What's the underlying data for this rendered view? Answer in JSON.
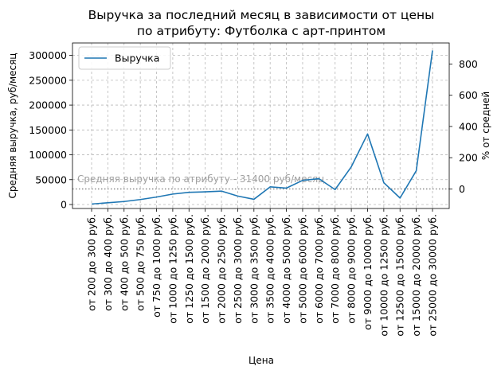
{
  "chart_data": {
    "type": "line",
    "title_line1": "Выручка за последний месяц в зависимости от цены",
    "title_line2": "по атрибуту: Футболка с арт-принтом",
    "xlabel": "Цена",
    "ylabel": "Средняя выручка, руб/месяц",
    "ylabel_right": "% от средней",
    "ylim": [
      -8000,
      325000
    ],
    "yticks": [
      0,
      50000,
      100000,
      150000,
      200000,
      250000,
      300000
    ],
    "yticks_right": [
      0,
      200,
      400,
      600,
      800
    ],
    "grid": true,
    "legend": {
      "position": "top-left",
      "entries": [
        "Выручка"
      ]
    },
    "series_color": "#1f77b4",
    "mean": 31400,
    "annotation": "Средняя выручка по атрибуту - 31400 руб/месяц",
    "categories": [
      "от 200 до 300 руб.",
      "от 300 до 400 руб.",
      "от 400 до 500 руб.",
      "от 500 до 750 руб.",
      "от 750 до 1000 руб.",
      "от 1000 до 1250 руб.",
      "от 1250 до 1500 руб.",
      "от 1500 до 2000 руб.",
      "от 2000 до 2500 руб.",
      "от 2500 до 3000 руб.",
      "от 3000 до 3500 руб.",
      "от 3500 до 4000 руб.",
      "от 4000 до 5000 руб.",
      "от 5000 до 6000 руб.",
      "от 6000 до 7000 руб.",
      "от 7000 до 8000 руб.",
      "от 8000 до 9000 руб.",
      "от 9000 до 10000 руб.",
      "от 10000 до 12500 руб.",
      "от 12500 до 15000 руб.",
      "от 15000 до 20000 руб.",
      "от 25000 до 30000 руб."
    ],
    "series": [
      {
        "name": "Выручка",
        "values": [
          1000,
          3500,
          6000,
          10000,
          15000,
          21000,
          24500,
          25500,
          27000,
          17000,
          10500,
          35500,
          33000,
          48500,
          52000,
          30000,
          76000,
          142000,
          44000,
          13000,
          68000,
          310000
        ]
      }
    ]
  }
}
